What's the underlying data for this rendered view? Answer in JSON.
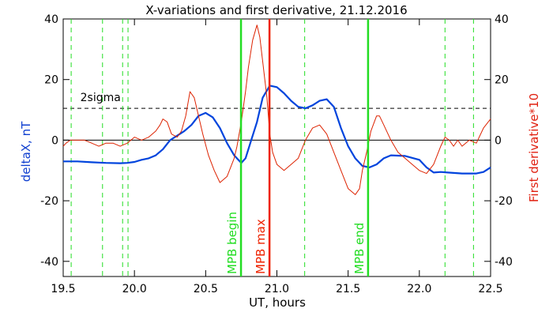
{
  "chart_data": {
    "type": "line",
    "title": "X-variations and first derivative, 21.12.2016",
    "xlabel": "UT, hours",
    "ylabel_left": "deltaX, nT",
    "ylabel_right": "First derivative*10",
    "xlim": [
      19.5,
      22.5
    ],
    "ylim": [
      -45,
      40
    ],
    "x_ticks": [
      "19.5",
      "20.0",
      "20.5",
      "21.0",
      "21.5",
      "22.0",
      "22.5"
    ],
    "y_ticks_left": [
      "40",
      "20",
      "0",
      "-20",
      "-40"
    ],
    "y_ticks_right": [
      "40",
      "20",
      "0",
      "-20",
      "-40"
    ],
    "grid": false,
    "sigma_line": {
      "label": "2sigma",
      "value": 10.5
    },
    "zero_line": 0,
    "colors": {
      "deltaX": "#0044dd",
      "derivative": "#dd2200",
      "markers": "#22dd22",
      "max_marker": "#ee2200"
    },
    "series": [
      {
        "name": "deltaX, nT",
        "color": "#0044dd",
        "x": [
          19.5,
          19.55,
          19.6,
          19.7,
          19.8,
          19.9,
          19.95,
          20.0,
          20.05,
          20.1,
          20.15,
          20.2,
          20.25,
          20.3,
          20.35,
          20.4,
          20.45,
          20.5,
          20.55,
          20.6,
          20.65,
          20.7,
          20.75,
          20.78,
          20.82,
          20.86,
          20.9,
          20.95,
          21.0,
          21.05,
          21.1,
          21.15,
          21.2,
          21.25,
          21.3,
          21.35,
          21.4,
          21.45,
          21.5,
          21.55,
          21.6,
          21.65,
          21.7,
          21.75,
          21.8,
          21.9,
          22.0,
          22.05,
          22.1,
          22.15,
          22.2,
          22.3,
          22.4,
          22.45,
          22.5
        ],
        "y": [
          -7,
          -7,
          -7,
          -7.3,
          -7.5,
          -7.6,
          -7.5,
          -7.2,
          -6.5,
          -6,
          -5,
          -3,
          0,
          1.5,
          3,
          5,
          8,
          9,
          7.5,
          4,
          -1,
          -5,
          -7.5,
          -6,
          0,
          6,
          14,
          18,
          17.5,
          15.5,
          13,
          11,
          10.5,
          11.5,
          13,
          13.5,
          11,
          4,
          -2,
          -6,
          -8.5,
          -9,
          -8,
          -6,
          -5,
          -5.2,
          -6.5,
          -9,
          -10.7,
          -10.5,
          -10.7,
          -11,
          -11,
          -10.5,
          -9
        ]
      },
      {
        "name": "First derivative*10",
        "color": "#dd2200",
        "x": [
          19.5,
          19.52,
          19.55,
          19.58,
          19.6,
          19.65,
          19.7,
          19.75,
          19.8,
          19.85,
          19.9,
          19.95,
          20.0,
          20.05,
          20.1,
          20.15,
          20.18,
          20.2,
          20.23,
          20.26,
          20.3,
          20.33,
          20.36,
          20.39,
          20.42,
          20.45,
          20.48,
          20.52,
          20.56,
          20.6,
          20.65,
          20.7,
          20.72,
          20.75,
          20.78,
          20.8,
          20.83,
          20.86,
          20.88,
          20.9,
          20.93,
          20.95,
          20.97,
          21.0,
          21.05,
          21.1,
          21.15,
          21.2,
          21.25,
          21.3,
          21.35,
          21.4,
          21.45,
          21.5,
          21.55,
          21.58,
          21.6,
          21.63,
          21.66,
          21.7,
          21.72,
          21.75,
          21.8,
          21.85,
          21.9,
          21.95,
          22.0,
          22.05,
          22.1,
          22.15,
          22.18,
          22.21,
          22.24,
          22.27,
          22.3,
          22.35,
          22.4,
          22.45,
          22.5
        ],
        "y": [
          -2,
          -1,
          0,
          0,
          0,
          0,
          -1,
          -2,
          -1,
          -1,
          -2,
          -1,
          1,
          0,
          1,
          3,
          5,
          7,
          6,
          2,
          1,
          3,
          8,
          16,
          14,
          8,
          2,
          -5,
          -10,
          -14,
          -12,
          -6,
          -2,
          6,
          16,
          24,
          33,
          38,
          34,
          26,
          14,
          2,
          -4,
          -8,
          -10,
          -8,
          -6,
          0,
          4,
          5,
          2,
          -4,
          -10,
          -16,
          -18,
          -16,
          -10,
          -4,
          3,
          8,
          8,
          5,
          0,
          -4,
          -6,
          -8,
          -10,
          -11,
          -8,
          -2,
          1,
          0,
          -2,
          0,
          -2,
          0,
          -1,
          4,
          7
        ]
      }
    ],
    "vertical_markers": [
      {
        "x": 20.748,
        "label": "MPB begin",
        "color": "#22dd22"
      },
      {
        "x": 20.948,
        "label": "MPB max",
        "color": "#ee2200"
      },
      {
        "x": 21.64,
        "label": "MPB end",
        "color": "#22dd22"
      }
    ],
    "dashed_markers_x": [
      19.556,
      19.776,
      19.917,
      19.955,
      21.195,
      22.18,
      22.38
    ]
  }
}
